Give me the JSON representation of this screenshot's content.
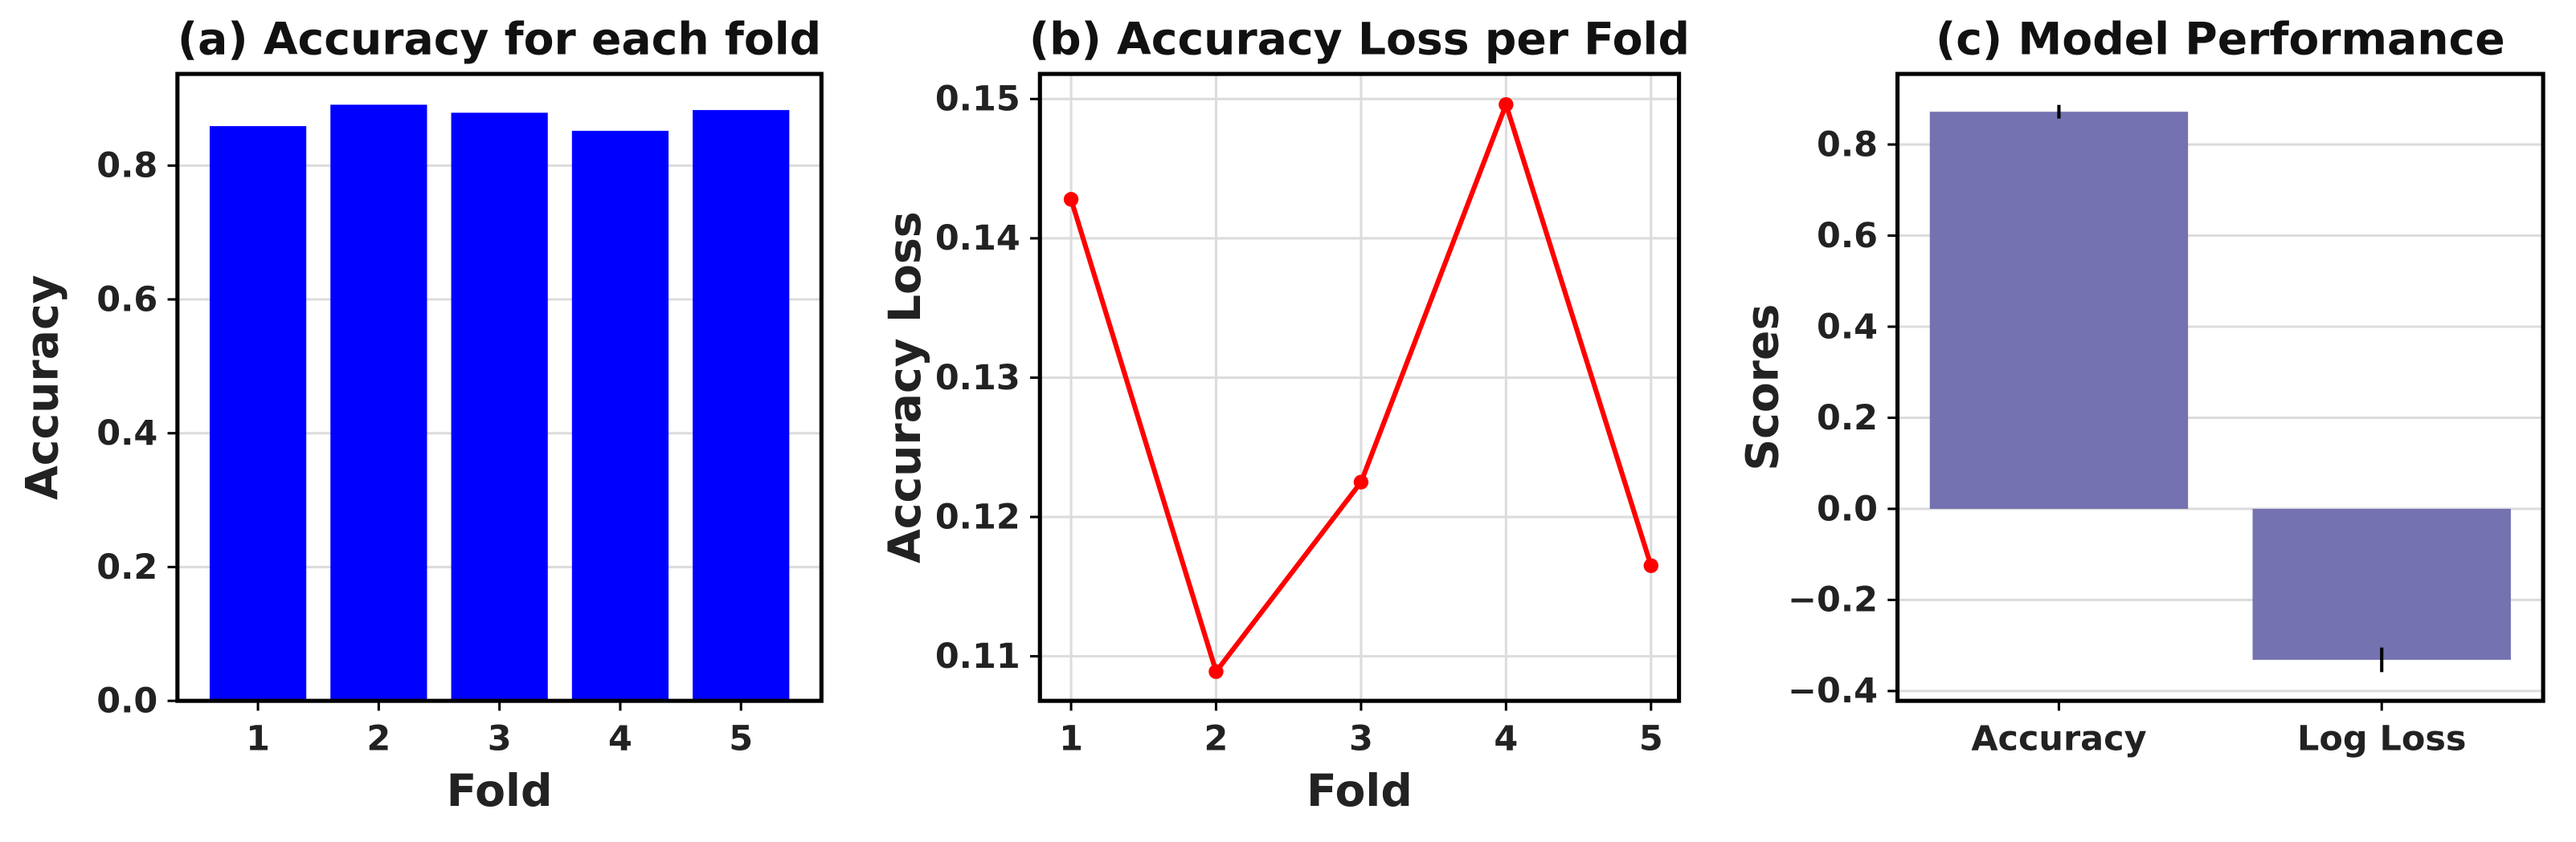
{
  "chart_data": [
    {
      "type": "bar",
      "title": "(a) Accuracy for each fold",
      "xlabel": "Fold",
      "ylabel": "Accuracy",
      "categories": [
        "1",
        "2",
        "3",
        "4",
        "5"
      ],
      "values": [
        0.859,
        0.891,
        0.879,
        0.852,
        0.883
      ],
      "color": "#0000ff",
      "ylim": [
        0,
        0.937
      ],
      "yticks": [
        {
          "value": 0,
          "label": "0.0"
        },
        0.2,
        0.4,
        0.6,
        0.8
      ],
      "grid": true
    },
    {
      "type": "line",
      "title": "(b) Accuracy Loss per Fold",
      "xlabel": "Fold",
      "ylabel": "Accuracy Loss",
      "x": [
        1,
        2,
        3,
        4,
        5
      ],
      "values": [
        0.1428,
        0.1089,
        0.1225,
        0.1496,
        0.1165
      ],
      "color": "#ff0000",
      "xlim": [
        0.785,
        5.193
      ],
      "xticks": [
        1,
        2,
        3,
        4,
        5
      ],
      "ylim": [
        0.1068,
        0.1518
      ],
      "yticks": [
        0.11,
        0.12,
        0.13,
        0.14,
        0.15
      ],
      "grid": true
    },
    {
      "type": "bar",
      "title": "(c) Model Performance",
      "ylabel": "Scores",
      "categories": [
        "Accuracy",
        "Log Loss"
      ],
      "values": [
        0.872,
        -0.3315
      ],
      "errors": [
        0.015,
        0.027
      ],
      "color": "#7472b0",
      "ylim": [
        -0.4216,
        0.955
      ],
      "yticks": [
        {
          "value": -0.4,
          "label": "−0.4"
        },
        {
          "value": -0.2,
          "label": "−0.2"
        },
        {
          "value": 0,
          "label": "0.0"
        },
        0.2,
        0.4,
        0.6,
        0.8
      ],
      "grid": true
    }
  ]
}
